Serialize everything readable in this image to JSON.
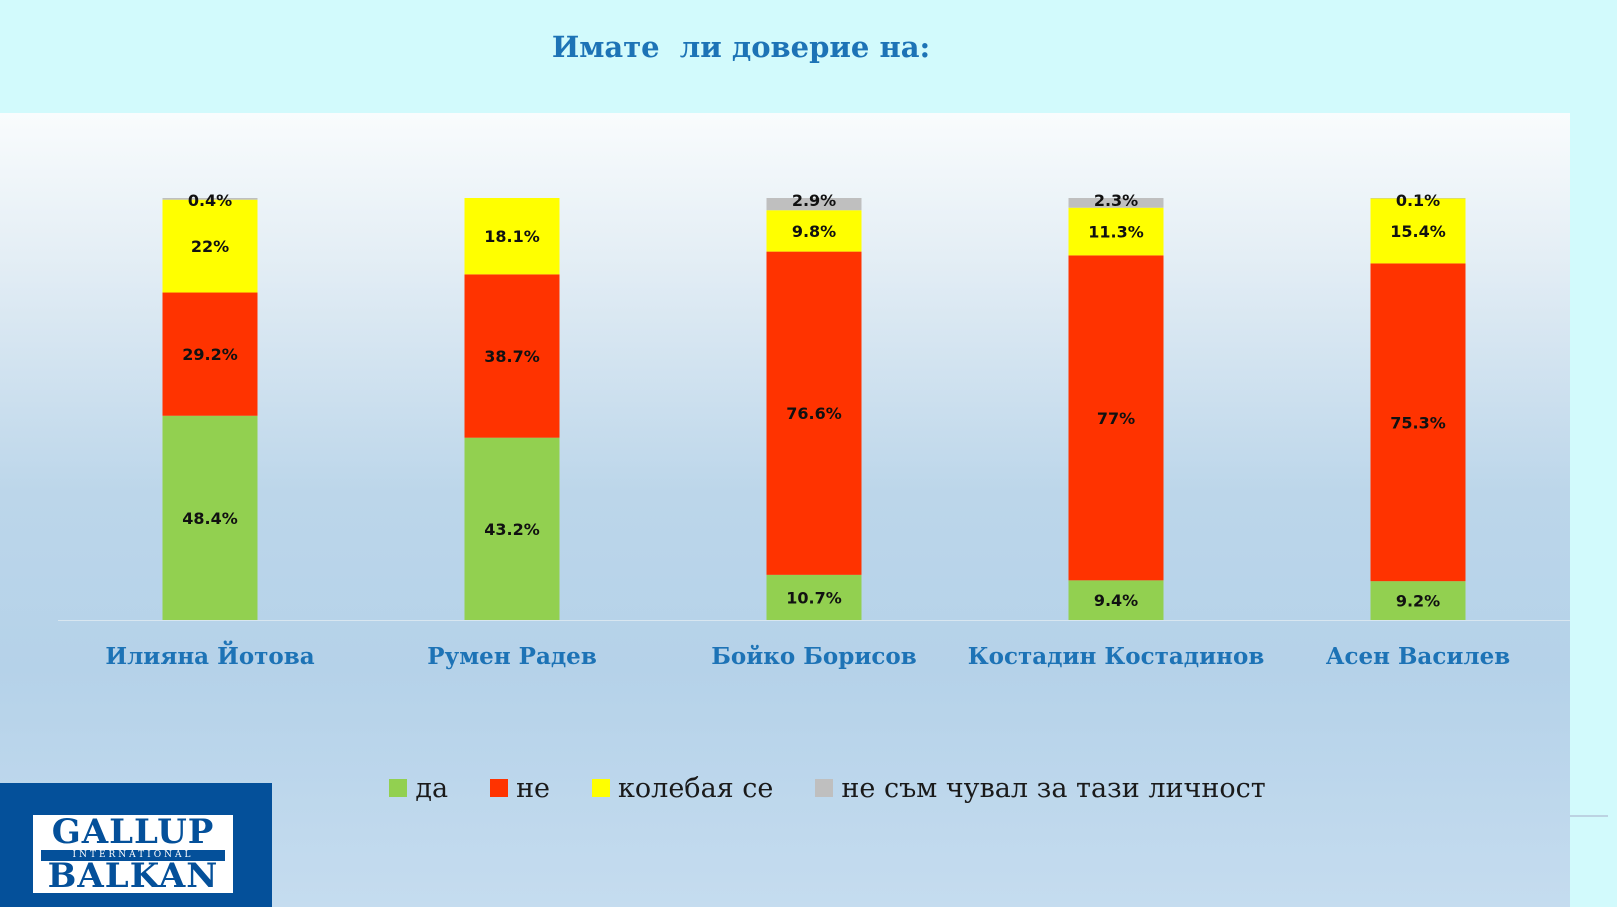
{
  "title": "Имате  ли доверие на:",
  "chart_data": {
    "type": "bar",
    "stacked": true,
    "title": "Имате  ли доверие на:",
    "categories": [
      "Илияна Йотова",
      "Румен Радев",
      "Бойко Борисов",
      "Костадин Костадинов",
      "Асен Василев"
    ],
    "ylim": [
      0,
      100
    ],
    "grid": false,
    "legend_position": "bottom",
    "series": [
      {
        "name": "да",
        "color": "#92d050",
        "values": [
          48.4,
          43.2,
          10.7,
          9.4,
          9.2
        ],
        "labels": [
          "48.4%",
          "43.2%",
          "10.7%",
          "9.4%",
          "9.2%"
        ]
      },
      {
        "name": "не",
        "color": "#ff3300",
        "values": [
          29.2,
          38.7,
          76.6,
          77,
          75.3
        ],
        "labels": [
          "29.2%",
          "38.7%",
          "76.6%",
          "77%",
          "75.3%"
        ]
      },
      {
        "name": "колебая се",
        "color": "#ffff00",
        "values": [
          22,
          18.1,
          9.8,
          11.3,
          15.4
        ],
        "labels": [
          "22%",
          "18.1%",
          "9.8%",
          "11.3%",
          "15.4%"
        ]
      },
      {
        "name": "не съм чувал за тази личност",
        "color": "#bfbfbf",
        "values": [
          0.4,
          0,
          2.9,
          2.3,
          0.1
        ],
        "labels": [
          "0.4%",
          "",
          "2.9%",
          "2.3%",
          "0.1%"
        ]
      }
    ]
  },
  "logo": {
    "top": "GALLUP",
    "middle": "INTERNATIONAL",
    "bottom": "BALKAN"
  }
}
